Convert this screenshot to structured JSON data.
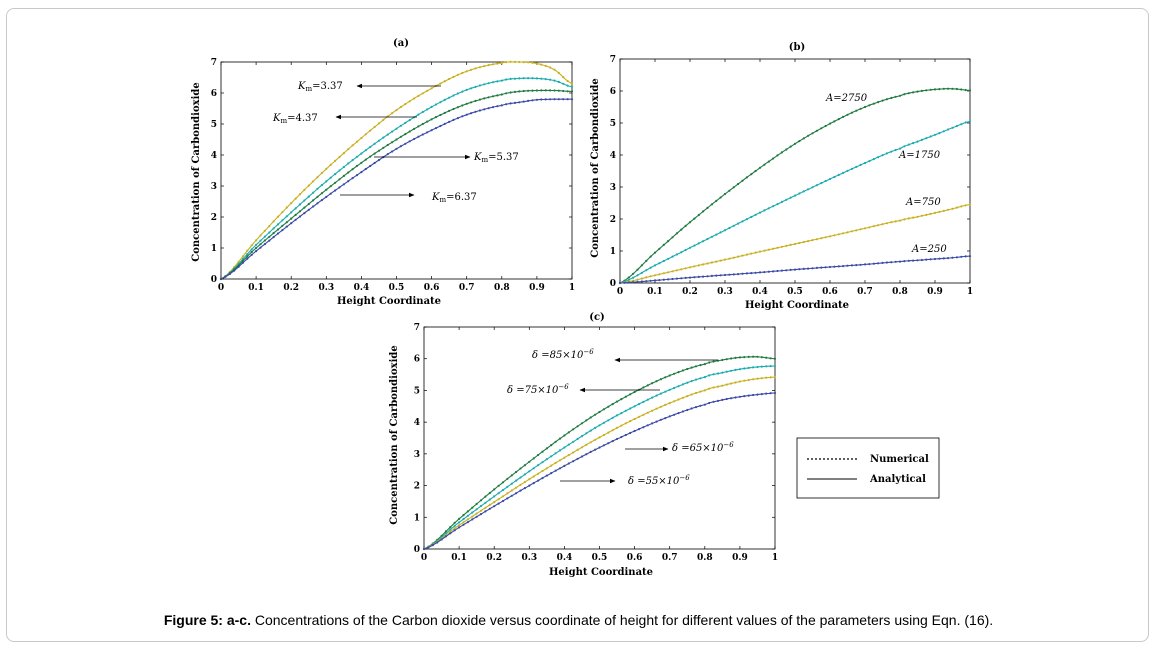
{
  "caption": {
    "label": "Figure 5: a-c.",
    "text": "Concentrations of the Carbon dioxide versus coordinate of height for different values of the parameters using Eqn. (16)."
  },
  "legend": {
    "numerical": "Numerical",
    "analytical": "Analytical"
  },
  "colors": {
    "gold": "#c8b020",
    "cyan": "#1aabb0",
    "green": "#1f7a40",
    "blue": "#3a4aa6"
  },
  "chart_data": [
    {
      "id": "a",
      "type": "line",
      "title": "(a)",
      "xlabel": "Height Coordinate",
      "ylabel": "Concentration of Carbondioxide",
      "xlim": [
        0,
        1
      ],
      "ylim": [
        0,
        7
      ],
      "xticks": [
        "0",
        "0.1",
        "0.2",
        "0.3",
        "0.4",
        "0.5",
        "0.6",
        "0.7",
        "0.8",
        "0.9",
        "1"
      ],
      "yticks": [
        "0",
        "1",
        "2",
        "3",
        "4",
        "5",
        "6",
        "7"
      ],
      "x": [
        0,
        0.1,
        0.2,
        0.3,
        0.4,
        0.5,
        0.6,
        0.7,
        0.8,
        0.85,
        0.9,
        0.95,
        1
      ],
      "series": [
        {
          "name": "Km=3.37",
          "color": "gold",
          "values": [
            0,
            1.25,
            2.45,
            3.55,
            4.55,
            5.45,
            6.15,
            6.7,
            6.97,
            7.0,
            6.95,
            6.75,
            6.3
          ]
        },
        {
          "name": "Km=4.37",
          "color": "cyan",
          "values": [
            0,
            1.1,
            2.15,
            3.15,
            4.05,
            4.85,
            5.55,
            6.1,
            6.4,
            6.47,
            6.47,
            6.4,
            6.2
          ]
        },
        {
          "name": "Km=5.37",
          "color": "green",
          "values": [
            0,
            1.0,
            1.95,
            2.88,
            3.75,
            4.5,
            5.15,
            5.65,
            5.95,
            6.05,
            6.08,
            6.08,
            6.05
          ]
        },
        {
          "name": "Km=6.37",
          "color": "blue",
          "values": [
            0,
            0.9,
            1.8,
            2.65,
            3.45,
            4.2,
            4.8,
            5.3,
            5.6,
            5.7,
            5.78,
            5.8,
            5.8
          ]
        }
      ],
      "annotations": [
        {
          "text": "Km=3.37",
          "sub": "m",
          "base": "K",
          "val": "=3.37"
        },
        {
          "text": "Km=4.37",
          "sub": "m",
          "base": "K",
          "val": "=4.37"
        },
        {
          "text": "Km=5.37",
          "sub": "m",
          "base": "K",
          "val": "=5.37"
        },
        {
          "text": "Km=6.37",
          "sub": "m",
          "base": "K",
          "val": "=6.37"
        }
      ]
    },
    {
      "id": "b",
      "type": "line",
      "title": "(b)",
      "xlabel": "Height Coordinate",
      "ylabel": "Concentration of Carbondioxide",
      "xlim": [
        0,
        1
      ],
      "ylim": [
        0,
        7
      ],
      "xticks": [
        "0",
        "0.1",
        "0.2",
        "0.3",
        "0.4",
        "0.5",
        "0.6",
        "0.7",
        "0.8",
        "0.9",
        "1"
      ],
      "yticks": [
        "0",
        "1",
        "2",
        "3",
        "4",
        "5",
        "6",
        "7"
      ],
      "x": [
        0,
        0.1,
        0.2,
        0.3,
        0.4,
        0.5,
        0.6,
        0.7,
        0.8,
        0.85,
        0.9,
        0.95,
        1
      ],
      "series": [
        {
          "name": "A=2750",
          "color": "green",
          "values": [
            0,
            0.95,
            1.9,
            2.78,
            3.6,
            4.35,
            4.98,
            5.5,
            5.85,
            5.98,
            6.05,
            6.07,
            6.02
          ]
        },
        {
          "name": "A=1750",
          "color": "cyan",
          "values": [
            0,
            0.55,
            1.1,
            1.65,
            2.2,
            2.73,
            3.25,
            3.75,
            4.2,
            4.42,
            4.63,
            4.85,
            5.05
          ]
        },
        {
          "name": "A=750",
          "color": "gold",
          "values": [
            0,
            0.24,
            0.49,
            0.73,
            0.98,
            1.22,
            1.46,
            1.71,
            1.95,
            2.07,
            2.19,
            2.32,
            2.45
          ]
        },
        {
          "name": "A=250",
          "color": "blue",
          "values": [
            0,
            0.08,
            0.17,
            0.25,
            0.33,
            0.42,
            0.5,
            0.58,
            0.67,
            0.71,
            0.75,
            0.79,
            0.84
          ]
        }
      ],
      "annotations": [
        {
          "text": "A=2750"
        },
        {
          "text": "A=1750"
        },
        {
          "text": "A=750"
        },
        {
          "text": "A=250"
        }
      ]
    },
    {
      "id": "c",
      "type": "line",
      "title": "(c)",
      "xlabel": "Height Coordinate",
      "ylabel": "Concentration of Carbondioxide",
      "xlim": [
        0,
        1
      ],
      "ylim": [
        0,
        7
      ],
      "xticks": [
        "0",
        "0.1",
        "0.2",
        "0.3",
        "0.4",
        "0.5",
        "0.6",
        "0.7",
        "0.8",
        "0.9",
        "1"
      ],
      "yticks": [
        "0",
        "1",
        "2",
        "3",
        "4",
        "5",
        "6",
        "7"
      ],
      "x": [
        0,
        0.1,
        0.2,
        0.3,
        0.4,
        0.5,
        0.6,
        0.7,
        0.8,
        0.85,
        0.9,
        0.95,
        1
      ],
      "series": [
        {
          "name": "δ=85×10^-6",
          "color": "green",
          "values": [
            0,
            0.95,
            1.88,
            2.75,
            3.58,
            4.32,
            4.95,
            5.47,
            5.83,
            5.96,
            6.04,
            6.06,
            6.0
          ]
        },
        {
          "name": "δ=75×10^-6",
          "color": "cyan",
          "values": [
            0,
            0.84,
            1.66,
            2.45,
            3.2,
            3.9,
            4.5,
            5.02,
            5.42,
            5.56,
            5.67,
            5.74,
            5.77
          ]
        },
        {
          "name": "δ=65×10^-6",
          "color": "gold",
          "values": [
            0,
            0.75,
            1.48,
            2.2,
            2.88,
            3.52,
            4.1,
            4.6,
            5.0,
            5.15,
            5.28,
            5.37,
            5.42
          ]
        },
        {
          "name": "δ=55×10^-6",
          "color": "blue",
          "values": [
            0,
            0.68,
            1.35,
            2.0,
            2.62,
            3.2,
            3.72,
            4.18,
            4.55,
            4.7,
            4.8,
            4.87,
            4.92
          ]
        }
      ],
      "annotations": [
        {
          "text": "δ=85×10^-6",
          "base": "δ =85×10",
          "sup": "−6"
        },
        {
          "text": "δ=75×10^-6",
          "base": "δ =75×10",
          "sup": "−6"
        },
        {
          "text": "δ=65×10^-6",
          "base": "δ =65×10",
          "sup": "−6"
        },
        {
          "text": "δ=55×10^-6",
          "base": "δ =55×10",
          "sup": "−6"
        }
      ]
    }
  ]
}
